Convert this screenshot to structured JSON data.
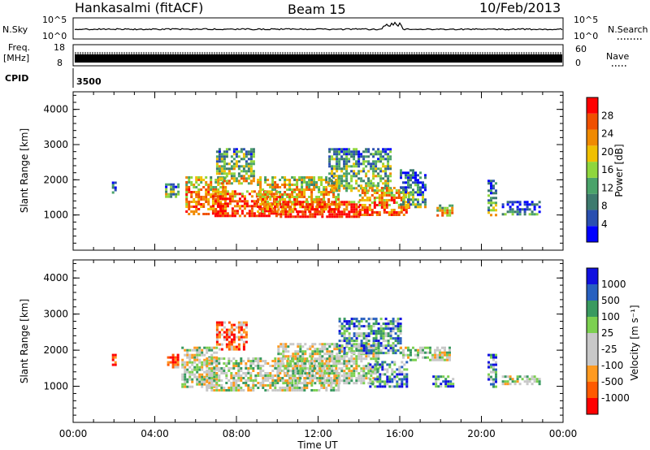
{
  "header": {
    "station": "Hankasalmi (fitACF)",
    "beam": "Beam 15",
    "date": "10/Feb/2013"
  },
  "strips": {
    "nsky_label": "N.Sky",
    "nsky_ticks": [
      "10^5",
      "10^0"
    ],
    "nsearch_label": "N.Search",
    "nsearch_ticks": [
      "10^5",
      "10^0"
    ],
    "freq_label_1": "Freq.",
    "freq_label_2": "[MHz]",
    "freq_ticks": [
      "18",
      "8"
    ],
    "nave_label": "Nave",
    "nave_ticks": [
      "60",
      "0"
    ],
    "cpid_label": "CPID",
    "cpid_value": "3500"
  },
  "colors": {
    "power_scale": [
      "#0000ff",
      "#2a4fb0",
      "#3d7a6e",
      "#4aa36a",
      "#8fd63d",
      "#f0c000",
      "#f08a00",
      "#f05000",
      "#ff0000"
    ],
    "velocity_scale": [
      "#ff0000",
      "#ff5a00",
      "#ff9a20",
      "#c8c8c8",
      "#c8c8c8",
      "#7cd050",
      "#3a9a60",
      "#2860c0",
      "#1010e0"
    ],
    "ground_scatter": "#bebebe"
  },
  "chart_data": [
    {
      "type": "heatmap",
      "name": "power-panel",
      "ylabel": "Slant Range [km]",
      "xlabel": "Time UT",
      "x_ticks": [
        "00:00",
        "04:00",
        "08:00",
        "12:00",
        "16:00",
        "20:00",
        "00:00"
      ],
      "y_ticks": [
        "1000",
        "2000",
        "3000",
        "4000"
      ],
      "ylim": [
        0,
        4500
      ],
      "xlim_hours": [
        0,
        24
      ],
      "colorbar_label": "Power [dB]",
      "colorbar_ticks": [
        "4",
        "8",
        "12",
        "16",
        "20",
        "24",
        "28"
      ],
      "regions": [
        {
          "t0": 1.9,
          "t1": 2.05,
          "r0": 1650,
          "r1": 1950,
          "level": 0.2
        },
        {
          "t0": 4.5,
          "t1": 5.2,
          "r0": 1500,
          "r1": 1900,
          "level": 0.4
        },
        {
          "t0": 5.5,
          "t1": 7.5,
          "r0": 1000,
          "r1": 2100,
          "level": 0.7
        },
        {
          "t0": 6.8,
          "t1": 10.0,
          "r0": 950,
          "r1": 1700,
          "level": 0.85
        },
        {
          "t0": 7.0,
          "t1": 8.8,
          "r0": 1900,
          "r1": 2900,
          "level": 0.45
        },
        {
          "t0": 9.0,
          "t1": 13.0,
          "r0": 1100,
          "r1": 2100,
          "level": 0.65
        },
        {
          "t0": 10.0,
          "t1": 14.0,
          "r0": 950,
          "r1": 1400,
          "level": 0.9
        },
        {
          "t0": 12.5,
          "t1": 15.5,
          "r0": 1700,
          "r1": 2900,
          "level": 0.4
        },
        {
          "t0": 14.0,
          "t1": 16.5,
          "r0": 1000,
          "r1": 1800,
          "level": 0.75
        },
        {
          "t0": 16.0,
          "t1": 17.2,
          "r0": 1200,
          "r1": 2300,
          "level": 0.3
        },
        {
          "t0": 17.8,
          "t1": 18.6,
          "r0": 1000,
          "r1": 1300,
          "level": 0.6
        },
        {
          "t0": 20.3,
          "t1": 20.7,
          "r0": 1000,
          "r1": 2000,
          "level": 0.35
        },
        {
          "t0": 21.0,
          "t1": 22.8,
          "r0": 1050,
          "r1": 1400,
          "level": 0.2
        }
      ]
    },
    {
      "type": "heatmap",
      "name": "velocity-panel",
      "ylabel": "Slant Range [km]",
      "xlabel": "Time UT",
      "x_ticks": [
        "00:00",
        "04:00",
        "08:00",
        "12:00",
        "16:00",
        "20:00",
        "00:00"
      ],
      "y_ticks": [
        "1000",
        "2000",
        "3000",
        "4000"
      ],
      "ylim": [
        0,
        4500
      ],
      "xlim_hours": [
        0,
        24
      ],
      "colorbar_label": "Velocity [m s⁻¹]",
      "colorbar_ticks": [
        "1000",
        "500",
        "100",
        "25",
        "-25",
        "-100",
        "-500",
        "-1000"
      ],
      "regions": [
        {
          "t0": 1.9,
          "t1": 2.05,
          "r0": 1600,
          "r1": 1900,
          "level": 0.15
        },
        {
          "t0": 4.6,
          "t1": 5.1,
          "r0": 1500,
          "r1": 1900,
          "level": 0.15
        },
        {
          "t0": 5.3,
          "t1": 7.0,
          "r0": 1000,
          "r1": 2100,
          "level": 0.5
        },
        {
          "t0": 6.5,
          "t1": 13.0,
          "r0": 900,
          "r1": 1800,
          "level": 0.5
        },
        {
          "t0": 7.0,
          "t1": 8.5,
          "r0": 2000,
          "r1": 2800,
          "level": 0.2
        },
        {
          "t0": 10.0,
          "t1": 15.0,
          "r0": 1100,
          "r1": 2200,
          "level": 0.5
        },
        {
          "t0": 13.0,
          "t1": 16.0,
          "r0": 1900,
          "r1": 2900,
          "level": 0.7
        },
        {
          "t0": 14.5,
          "t1": 16.3,
          "r0": 1000,
          "r1": 1700,
          "level": 0.75
        },
        {
          "t0": 16.0,
          "t1": 18.5,
          "r0": 1700,
          "r1": 2100,
          "level": 0.5
        },
        {
          "t0": 17.6,
          "t1": 18.6,
          "r0": 1000,
          "r1": 1300,
          "level": 0.75
        },
        {
          "t0": 20.3,
          "t1": 20.7,
          "r0": 1000,
          "r1": 1900,
          "level": 0.72
        },
        {
          "t0": 21.0,
          "t1": 22.8,
          "r0": 1050,
          "r1": 1300,
          "level": 0.5
        }
      ]
    }
  ]
}
